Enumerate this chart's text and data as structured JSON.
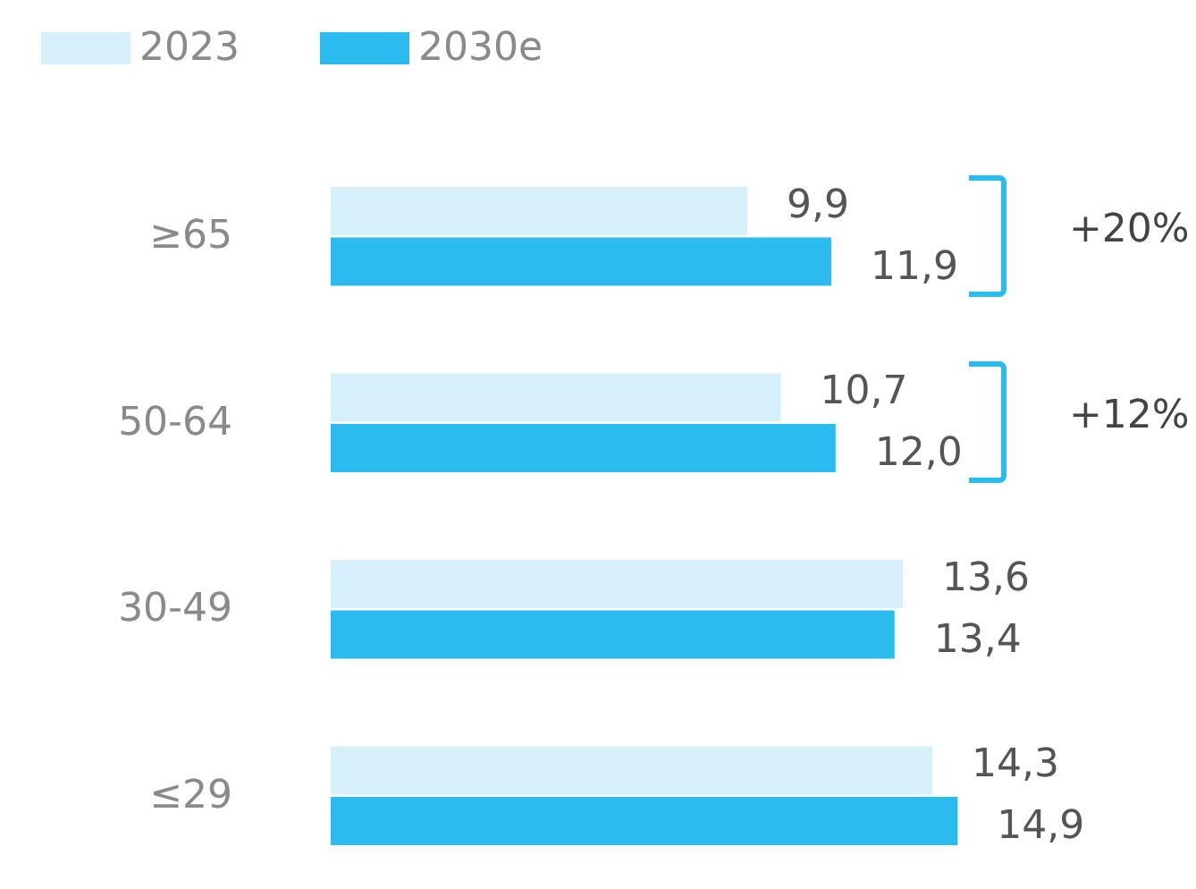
{
  "chart_data": {
    "type": "bar",
    "orientation": "horizontal",
    "categories": [
      "≥65",
      "50-64",
      "30-49",
      "≤29"
    ],
    "series": [
      {
        "name": "2023",
        "color": "#d5f0fa",
        "values": [
          9.9,
          10.7,
          13.6,
          14.3
        ],
        "value_labels": [
          "9,9",
          "10,7",
          "13,6",
          "14,3"
        ]
      },
      {
        "name": "2030e",
        "color": "#2bbbee",
        "values": [
          11.9,
          12.0,
          13.4,
          14.9
        ],
        "value_labels": [
          "11,9",
          "12,0",
          "13,4",
          "14,9"
        ]
      }
    ],
    "annotations": [
      "+20%",
      "+12%"
    ],
    "legend": "top left",
    "grid": false
  }
}
